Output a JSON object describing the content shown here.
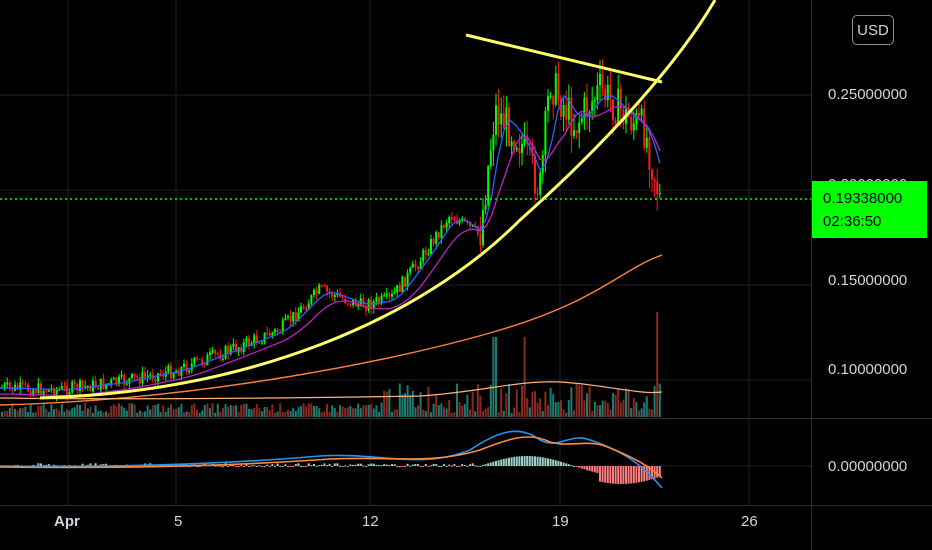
{
  "toolbar": {
    "currency": "USD"
  },
  "price_tag": {
    "price": "0.19338000",
    "countdown": "02:36:50"
  },
  "colors": {
    "bull": "#00ff00",
    "bear": "#ff1a1a",
    "trendline": "#ffff66",
    "ma_fast": "#2962ff",
    "ma_mid": "#c020c0",
    "ma_slow": "#ff7f3f",
    "macd": "#2196f3",
    "signal": "#ff8a3c",
    "volume": "#26a69a",
    "grid": "#1c1f26",
    "axis_text": "#d1d4dc"
  },
  "chart_data": [
    {
      "type": "candlestick",
      "title": "",
      "y_ticks": [
        "0.25000000",
        "0.20000000",
        "0.15000000",
        "0.10000000"
      ],
      "y_tick_values": [
        0.25,
        0.2,
        0.15,
        0.1
      ],
      "x_ticks": [
        "Apr",
        "5",
        "12",
        "19",
        "26"
      ],
      "current_price": 0.19338,
      "ylim": [
        0.068,
        0.32
      ],
      "grid": true,
      "indicators": [
        "moving averages",
        "volume",
        "parabolic trendline",
        "resistance trendline"
      ]
    },
    {
      "type": "line",
      "title": "",
      "y_ticks": [
        "0.00000000"
      ],
      "series_names": [],
      "grid": true
    }
  ]
}
